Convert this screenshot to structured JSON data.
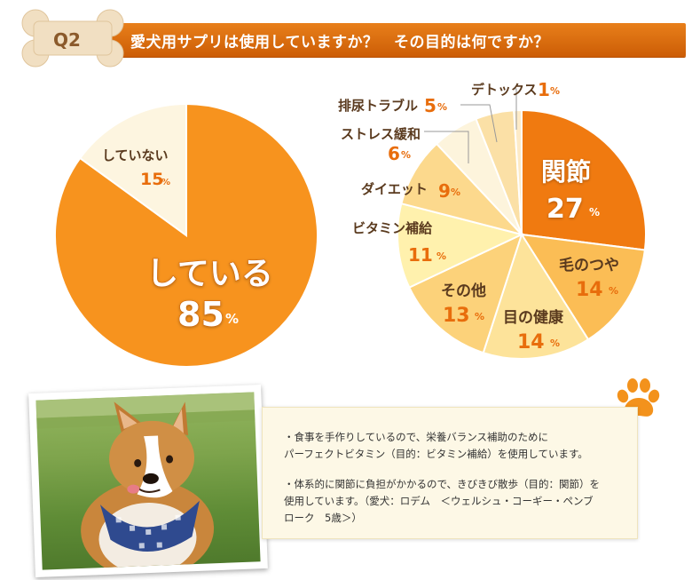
{
  "header": {
    "badge": "Q2",
    "title": "愛犬用サプリは使用していますか？　その目的は何ですか？"
  },
  "colors": {
    "orange_main": "#f7931e",
    "orange_dark": "#f07a10",
    "cream": "#fdf5e0",
    "label_brown": "#5a3a1e",
    "pct_orange": "#e86d0c"
  },
  "chart_data": [
    {
      "type": "pie",
      "categories": [
        "している",
        "していない"
      ],
      "values": [
        85,
        15
      ],
      "unit": "%",
      "labels": [
        {
          "name": "している",
          "value": "85",
          "unit": "%"
        },
        {
          "name": "していない",
          "value": "15",
          "unit": "%"
        }
      ]
    },
    {
      "type": "pie",
      "categories": [
        "関節",
        "毛のつや",
        "目の健康",
        "その他",
        "ビタミン補給",
        "ダイエット",
        "ストレス緩和",
        "排尿トラブル",
        "デトックス"
      ],
      "values": [
        27,
        14,
        14,
        13,
        11,
        9,
        6,
        5,
        1
      ],
      "unit": "%",
      "labels": [
        {
          "name": "関節",
          "value": "27",
          "unit": "%"
        },
        {
          "name": "毛のつや",
          "value": "14",
          "unit": "%"
        },
        {
          "name": "目の健康",
          "value": "14",
          "unit": "%"
        },
        {
          "name": "その他",
          "value": "13",
          "unit": "%"
        },
        {
          "name": "ビタミン補給",
          "value": "11",
          "unit": "%"
        },
        {
          "name": "ダイエット",
          "value": "9",
          "unit": "%"
        },
        {
          "name": "ストレス緩和",
          "value": "6",
          "unit": "%"
        },
        {
          "name": "排尿トラブル",
          "value": "5",
          "unit": "%"
        },
        {
          "name": "デトックス",
          "value": "1",
          "unit": "%"
        }
      ]
    }
  ],
  "comments": [
    {
      "line1": "・食事を手作りしているので、栄養バランス補助のために",
      "line2": "パーフェクトビタミン（目的：ビタミン補給）を使用しています。"
    },
    {
      "line1": "・体系的に関節に負担がかかるので、きびきび散歩（目的：関節）を",
      "line2": "使用しています。（愛犬：ロデム　＜ウェルシュ・コーギー・ペンブ",
      "line3": "ローク　5歳＞）"
    }
  ]
}
